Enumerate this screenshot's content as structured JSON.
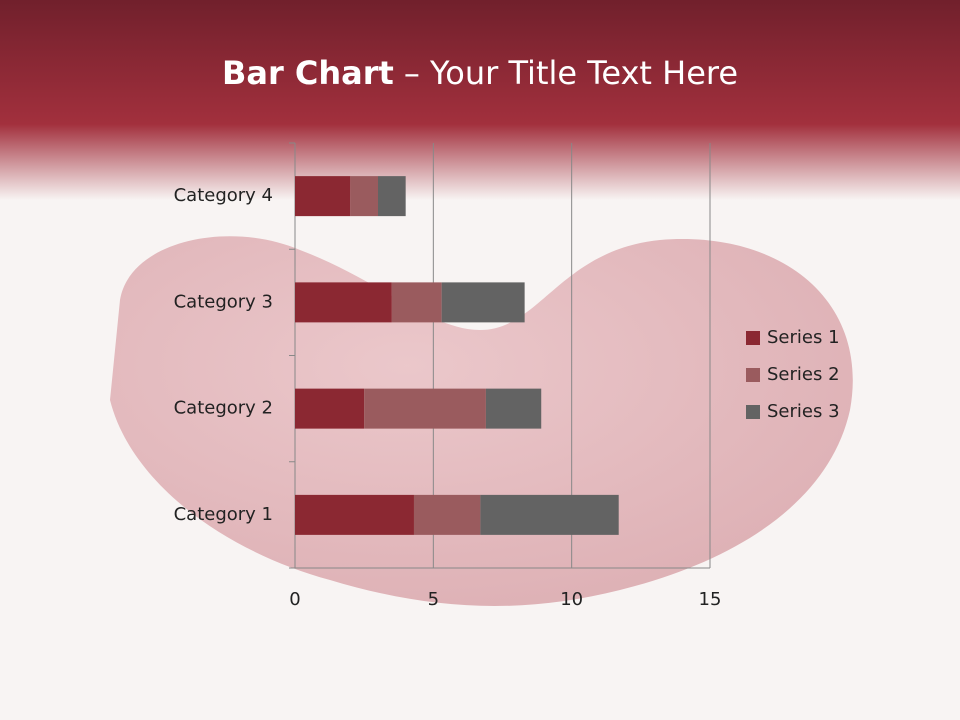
{
  "chart_data": {
    "type": "stacked-bar-horizontal",
    "title": {
      "bold": "Bar Chart",
      "rest": "– Your Title Text Here"
    },
    "categories": [
      "Category 1",
      "Category 2",
      "Category 3",
      "Category 4"
    ],
    "series": [
      {
        "name": "Series 1",
        "color": "#8b2832",
        "values": [
          4.3,
          2.5,
          3.5,
          2.0
        ]
      },
      {
        "name": "Series 2",
        "color": "#9a5b5e",
        "values": [
          2.4,
          4.4,
          1.8,
          1.0
        ]
      },
      {
        "name": "Series 3",
        "color": "#636363",
        "values": [
          5.0,
          2.0,
          3.0,
          1.0
        ]
      }
    ],
    "xlim": [
      0,
      15
    ],
    "xticks": [
      0,
      5,
      10,
      15
    ],
    "grid": true,
    "legend": "right"
  }
}
